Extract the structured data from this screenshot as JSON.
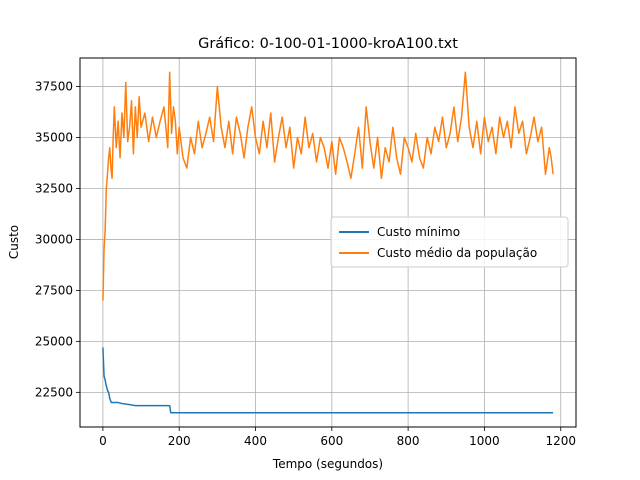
{
  "chart_data": {
    "type": "line",
    "title": "Gráfico: 0-100-01-1000-kroA100.txt",
    "xlabel": "Tempo (segundos)",
    "ylabel": "Custo",
    "xlim": [
      -60,
      1240
    ],
    "ylim": [
      20800,
      38900
    ],
    "xticks": [
      0,
      200,
      400,
      600,
      800,
      1000,
      1200
    ],
    "yticks": [
      22500,
      25000,
      27500,
      30000,
      32500,
      35000,
      37500
    ],
    "grid": true,
    "legend_position": "center-right",
    "series": [
      {
        "name": "Custo mínimo",
        "color": "#1f77b4",
        "x": [
          0,
          3,
          6,
          8,
          12,
          15,
          18,
          22,
          40,
          50,
          70,
          85,
          120,
          175,
          178,
          1180
        ],
        "y": [
          24700,
          23300,
          23100,
          22900,
          22600,
          22500,
          22200,
          22000,
          22000,
          21950,
          21900,
          21850,
          21850,
          21850,
          21500,
          21500
        ]
      },
      {
        "name": "Custo médio da população",
        "color": "#ff7f0e",
        "x": [
          0,
          3,
          6,
          9,
          12,
          15,
          18,
          21,
          24,
          27,
          30,
          35,
          40,
          45,
          50,
          55,
          60,
          65,
          70,
          75,
          80,
          85,
          90,
          95,
          100,
          110,
          120,
          130,
          140,
          150,
          160,
          170,
          175,
          180,
          185,
          190,
          195,
          200,
          210,
          220,
          230,
          240,
          250,
          260,
          270,
          280,
          290,
          300,
          310,
          320,
          330,
          340,
          350,
          360,
          370,
          380,
          390,
          400,
          410,
          420,
          430,
          440,
          450,
          460,
          470,
          480,
          490,
          500,
          510,
          520,
          530,
          540,
          550,
          560,
          570,
          580,
          590,
          600,
          610,
          620,
          630,
          640,
          650,
          660,
          670,
          680,
          690,
          700,
          710,
          720,
          730,
          740,
          750,
          760,
          770,
          780,
          790,
          800,
          810,
          820,
          830,
          840,
          850,
          860,
          870,
          880,
          890,
          900,
          910,
          920,
          930,
          940,
          950,
          960,
          970,
          980,
          990,
          1000,
          1010,
          1020,
          1030,
          1040,
          1050,
          1060,
          1070,
          1080,
          1090,
          1100,
          1110,
          1120,
          1130,
          1140,
          1150,
          1160,
          1170,
          1175,
          1180
        ],
        "y": [
          27000,
          29500,
          30500,
          32500,
          33200,
          34000,
          34500,
          33500,
          33000,
          35000,
          36500,
          34500,
          35800,
          34000,
          36200,
          35000,
          37700,
          34800,
          35500,
          36800,
          34200,
          36500,
          35000,
          37000,
          35500,
          36200,
          34800,
          36000,
          35000,
          35800,
          36500,
          34500,
          38200,
          35200,
          36500,
          35800,
          34200,
          35500,
          34000,
          33500,
          35000,
          34200,
          35800,
          34500,
          35200,
          36000,
          34800,
          37500,
          35500,
          34500,
          35800,
          34200,
          36000,
          35200,
          34000,
          35500,
          36500,
          35000,
          34200,
          35800,
          34500,
          36200,
          33800,
          35000,
          36000,
          34500,
          35500,
          33500,
          35000,
          34200,
          36000,
          34500,
          35200,
          33800,
          35000,
          34500,
          33500,
          34800,
          33200,
          35000,
          34500,
          33800,
          33000,
          34200,
          35500,
          33500,
          36500,
          34800,
          33500,
          35000,
          33000,
          34500,
          33800,
          35500,
          34000,
          33200,
          35000,
          34500,
          33800,
          35200,
          34000,
          33500,
          35000,
          34200,
          35500,
          34800,
          36000,
          34500,
          35200,
          36500,
          34800,
          36000,
          38200,
          35500,
          34500,
          35800,
          34200,
          36000,
          34800,
          35500,
          34200,
          36000,
          35000,
          35800,
          34500,
          36500,
          35200,
          35800,
          34200,
          35000,
          36000,
          34800,
          35500,
          33200,
          34500,
          34000,
          33200
        ]
      }
    ]
  }
}
